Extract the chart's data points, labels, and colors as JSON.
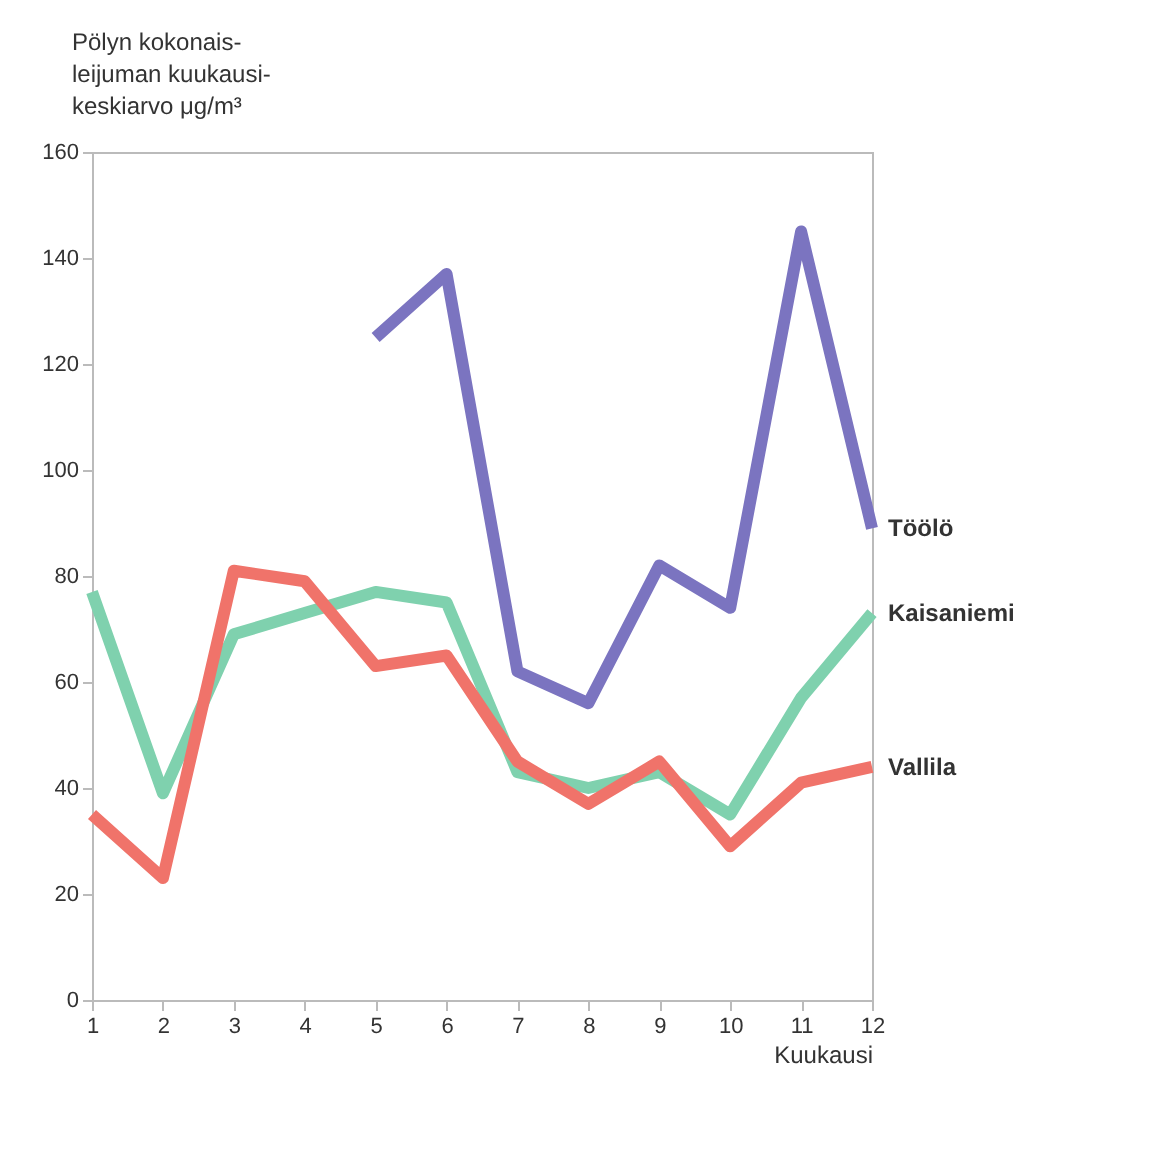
{
  "chart_data": {
    "type": "line",
    "ylabel": "Pölyn kokonais-\nleijuman kuukausi-\nkeskiarvo μg/m³",
    "xlabel": "Kuukausi",
    "x": [
      1,
      2,
      3,
      4,
      5,
      6,
      7,
      8,
      9,
      10,
      11,
      12
    ],
    "xlim": [
      1,
      12
    ],
    "xticks": [
      1,
      2,
      3,
      4,
      5,
      6,
      7,
      8,
      9,
      10,
      11,
      12
    ],
    "ylim": [
      0,
      160
    ],
    "yticks": [
      0,
      20,
      40,
      60,
      80,
      100,
      120,
      140,
      160
    ],
    "grid": false,
    "legend": false,
    "marker": "none",
    "line_style": "solid",
    "series": [
      {
        "name": "Töölö",
        "color": "#7b74c0",
        "values": [
          null,
          null,
          null,
          null,
          125,
          137,
          62,
          56,
          82,
          74,
          145,
          89
        ]
      },
      {
        "name": "Kaisaniemi",
        "color": "#7fd1ae",
        "values": [
          77,
          39,
          69,
          73,
          77,
          75,
          43,
          40,
          43,
          35,
          57,
          73
        ]
      },
      {
        "name": "Vallila",
        "color": "#f0736a",
        "values": [
          35,
          23,
          81,
          79,
          63,
          65,
          45,
          37,
          45,
          29,
          41,
          44
        ]
      }
    ]
  }
}
